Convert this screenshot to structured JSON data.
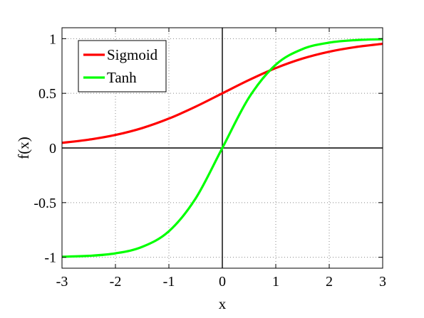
{
  "chart_data": {
    "type": "line",
    "title": "",
    "xlabel": "x",
    "ylabel": "f(x)",
    "xlim": [
      -3,
      3
    ],
    "ylim": [
      -1.1,
      1.1
    ],
    "xticks": [
      -3,
      -2,
      -1,
      0,
      1,
      2,
      3
    ],
    "yticks": [
      -1,
      -0.5,
      0,
      0.5,
      1
    ],
    "xtick_labels": [
      "-3",
      "-2",
      "-1",
      "0",
      "1",
      "2",
      "3"
    ],
    "ytick_labels": [
      "-1",
      "-0.5",
      "0",
      "0.5",
      "1"
    ],
    "grid": true,
    "legend_position": "top-left",
    "x": [
      -3,
      -2.5,
      -2,
      -1.5,
      -1,
      -0.5,
      0,
      0.5,
      1,
      1.5,
      2,
      2.5,
      3
    ],
    "series": [
      {
        "name": "Sigmoid",
        "color": "#ff0000",
        "values": [
          0.047,
          0.076,
          0.119,
          0.182,
          0.269,
          0.378,
          0.5,
          0.622,
          0.731,
          0.818,
          0.881,
          0.924,
          0.953
        ]
      },
      {
        "name": "Tanh",
        "color": "#00ff00",
        "values": [
          -0.995,
          -0.987,
          -0.964,
          -0.905,
          -0.762,
          -0.462,
          0,
          0.462,
          0.762,
          0.905,
          0.964,
          0.987,
          0.995
        ]
      }
    ]
  }
}
